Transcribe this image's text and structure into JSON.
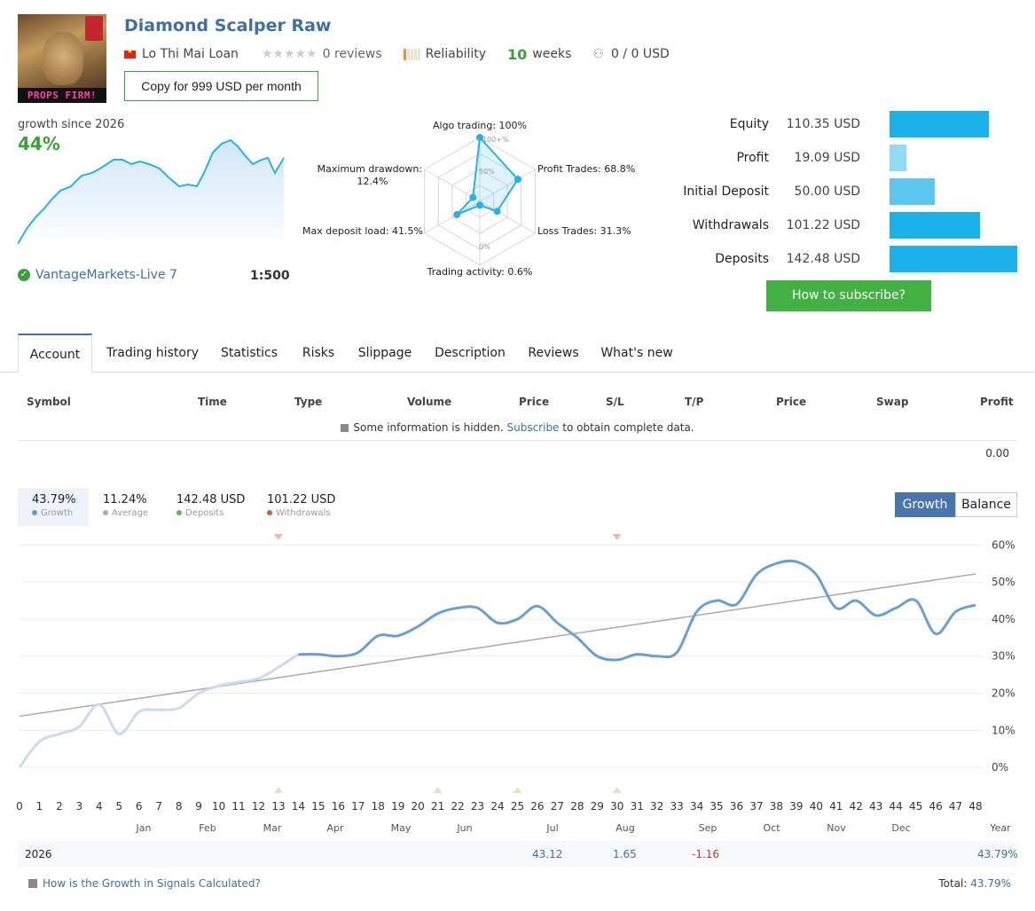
{
  "header": {
    "avatar_text": "PROPS FIRM!",
    "title": "Diamond Scalper Raw",
    "author": "Lo Thi Mai Loan",
    "reviews": "0 reviews",
    "reliability_label": "Reliability",
    "weeks_num": "10",
    "weeks_label": "weeks",
    "subscribers": "0 / 0 USD",
    "copy_button": "Copy for 999 USD per month"
  },
  "growth_summary": {
    "label": "growth since 2026",
    "value": "44%",
    "broker": "VantageMarkets-Live 7",
    "leverage": "1:500"
  },
  "radar": {
    "labels": {
      "algo": "Algo trading: 100%",
      "profit_trades": "Profit Trades: 68.8%",
      "loss_trades": "Loss Trades: 31.3%",
      "activity": "Trading activity: 0.6%",
      "deposit_load": "Max deposit load: 41.5%",
      "drawdown_1": "Maximum drawdown:",
      "drawdown_2": "12.4%"
    },
    "tick_100": "100+%",
    "tick_50": "50%",
    "tick_0": "0%",
    "values": [
      100,
      68.8,
      31.3,
      0.6,
      41.5,
      12.4
    ]
  },
  "stats": {
    "rows": [
      {
        "label": "Equity",
        "value": "110.35 USD",
        "fraction": 0.7745
      },
      {
        "label": "Profit",
        "value": "19.09 USD",
        "fraction": 0.134
      },
      {
        "label": "Initial Deposit",
        "value": "50.00 USD",
        "fraction": 0.351
      },
      {
        "label": "Withdrawals",
        "value": "101.22 USD",
        "fraction": 0.7104
      },
      {
        "label": "Deposits",
        "value": "142.48 USD",
        "fraction": 1.0
      }
    ],
    "subscribe_button": "How to subscribe?"
  },
  "tabs": [
    "Account",
    "Trading history",
    "Statistics",
    "Risks",
    "Slippage",
    "Description",
    "Reviews",
    "What's new"
  ],
  "table": {
    "headers": [
      "Symbol",
      "Time",
      "Type",
      "Volume",
      "Price",
      "S/L",
      "T/P",
      "Price",
      "Swap",
      "Profit"
    ],
    "hidden_pre": "Some information is hidden.",
    "hidden_link": "Subscribe",
    "hidden_post": "to obtain complete data.",
    "profit_total": "0.00"
  },
  "legend": [
    {
      "value": "43.79%",
      "label": "Growth",
      "color": "#5b9bd5"
    },
    {
      "value": "11.24%",
      "label": "Average",
      "color": "#aaaaaa"
    },
    {
      "value": "142.48 USD",
      "label": "Deposits",
      "color": "#5cb85c"
    },
    {
      "value": "101.22 USD",
      "label": "Withdrawals",
      "color": "#d9534f"
    }
  ],
  "toggle": {
    "growth": "Growth",
    "balance": "Balance"
  },
  "chart_data": {
    "type": "line",
    "title": "",
    "x": [
      0,
      1,
      2,
      3,
      4,
      5,
      6,
      7,
      8,
      9,
      10,
      11,
      12,
      13,
      14,
      15,
      16,
      17,
      18,
      19,
      20,
      21,
      22,
      23,
      24,
      25,
      26,
      27,
      28,
      29,
      30,
      31,
      32,
      33,
      34,
      35,
      36,
      37,
      38,
      39,
      40,
      41,
      42,
      43,
      44,
      45,
      46,
      47,
      48
    ],
    "series": [
      {
        "values": [
          0,
          7,
          9,
          11,
          17,
          9,
          15,
          15.5,
          16,
          20,
          22,
          23,
          24,
          27,
          30.5,
          30.5,
          30,
          31,
          35.5,
          35.5,
          38,
          41.5,
          43,
          43,
          39,
          40,
          43.5,
          39,
          35,
          30,
          29,
          30.5,
          30,
          31,
          42,
          45,
          44,
          52,
          55,
          55.5,
          52,
          43,
          45,
          41,
          43,
          45,
          36,
          42,
          43.8
        ]
      }
    ],
    "trend": [
      13.8,
      52.2
    ],
    "ylim": [
      -5,
      62
    ],
    "yticks": [
      "60%",
      "50%",
      "40%",
      "30%",
      "20%",
      "10%",
      "0%"
    ],
    "month_labels": [
      "Jan",
      "Feb",
      "Mar",
      "Apr",
      "May",
      "Jun",
      "Jul",
      "Aug",
      "Sep",
      "Oct",
      "Nov",
      "Dec",
      "Year"
    ],
    "withdrawal_markers": [
      13,
      30
    ],
    "deposit_markers": [
      13,
      21,
      25,
      30
    ]
  },
  "year_row": {
    "year": "2026",
    "jul": "43.12",
    "aug": "1.65",
    "sep": "-1.16",
    "year_total": "43.79%"
  },
  "footer": {
    "link": "How is the Growth in Signals Calculated?",
    "total_label": "Total:",
    "total_value": "43.79%"
  }
}
